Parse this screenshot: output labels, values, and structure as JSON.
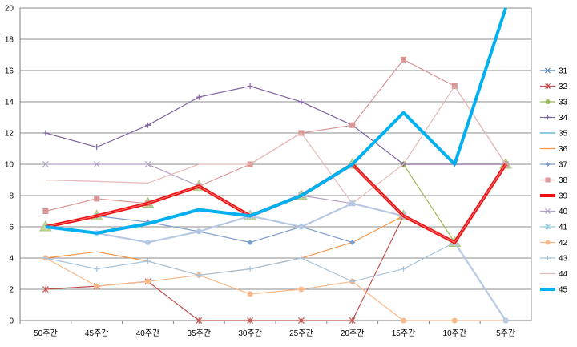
{
  "chart_data": {
    "type": "line",
    "categories": [
      "50주간",
      "45주간",
      "40주간",
      "35주간",
      "30주간",
      "25주간",
      "20주간",
      "15주간",
      "10주간",
      "5주간"
    ],
    "ylim": [
      0,
      20
    ],
    "yticks": [
      "0",
      "2",
      "4",
      "6",
      "8",
      "10",
      "12",
      "14",
      "16",
      "18",
      "20"
    ],
    "grid": true,
    "legend_position": "right",
    "series": [
      {
        "name": "31",
        "color": "#4f81bd",
        "marker": "x",
        "width": 1.2,
        "values": [
          null,
          null,
          null,
          null,
          null,
          null,
          null,
          null,
          null,
          null
        ]
      },
      {
        "name": "32",
        "color": "#c0504d",
        "marker": "star",
        "width": 1.2,
        "values": [
          2,
          2.2,
          2.5,
          0,
          0,
          0,
          0,
          6.7,
          5,
          10
        ]
      },
      {
        "name": "33",
        "color": "#9bbb59",
        "marker": "circle",
        "width": 1.2,
        "values": [
          null,
          null,
          null,
          null,
          null,
          null,
          null,
          10,
          5,
          null
        ]
      },
      {
        "name": "34",
        "color": "#8064a2",
        "marker": "plus",
        "width": 1.2,
        "values": [
          12,
          11.1,
          12.5,
          14.3,
          15,
          14,
          12.5,
          10,
          10,
          10
        ]
      },
      {
        "name": "35",
        "color": "#4bacc6",
        "marker": "none",
        "width": 1.2,
        "values": [
          null,
          null,
          null,
          null,
          null,
          null,
          null,
          null,
          null,
          null
        ]
      },
      {
        "name": "36",
        "color": "#f79646",
        "marker": "none",
        "width": 1.2,
        "values": [
          4,
          4.4,
          3.8,
          2.9,
          3.3,
          4,
          5,
          6.7,
          null,
          null
        ]
      },
      {
        "name": "37",
        "color": "#7f9fcf",
        "marker": "diamond",
        "width": 1.2,
        "values": [
          null,
          6.7,
          6.3,
          5.7,
          5,
          6,
          5,
          null,
          null,
          null
        ]
      },
      {
        "name": "38",
        "color": "#d99694",
        "marker": "square",
        "width": 1.2,
        "values": [
          7,
          7.8,
          7.5,
          8.6,
          10,
          12,
          12.5,
          16.7,
          15,
          10
        ]
      },
      {
        "name": "39",
        "color": "#ee1111",
        "marker": "none",
        "width": 4,
        "values": [
          6,
          6.7,
          7.5,
          8.6,
          6.7,
          8,
          10,
          6.7,
          5,
          10
        ]
      },
      {
        "name": "40",
        "color": "#b3a2c7",
        "marker": "x",
        "width": 1.2,
        "values": [
          10,
          10,
          10,
          8.6,
          6.7,
          8,
          7.5,
          6.7,
          5,
          10
        ]
      },
      {
        "name": "41",
        "color": "#93cddd",
        "marker": "star",
        "width": 1.2,
        "values": [
          null,
          null,
          null,
          null,
          null,
          null,
          null,
          null,
          null,
          null
        ]
      },
      {
        "name": "42",
        "color": "#fab98a",
        "marker": "circle",
        "width": 1.2,
        "values": [
          4,
          2.2,
          2.5,
          2.9,
          1.7,
          2,
          2.5,
          0,
          0,
          0
        ]
      },
      {
        "name": "43",
        "color": "#a6c4de",
        "marker": "plus",
        "width": 1.2,
        "values": [
          4,
          3.3,
          3.8,
          2.9,
          3.3,
          4,
          2.5,
          3.3,
          5,
          0
        ]
      },
      {
        "name": "44",
        "color": "#e6b9b8",
        "marker": "none",
        "width": 1.2,
        "values": [
          9,
          8.9,
          8.8,
          10,
          10,
          12,
          7.5,
          10,
          15,
          10
        ]
      },
      {
        "name": "45",
        "color": "#00b0f0",
        "marker": "none",
        "width": 4,
        "values": [
          6,
          5.6,
          6.2,
          7.1,
          6.7,
          8,
          10,
          13.3,
          10,
          20
        ]
      },
      {
        "name": "",
        "color": "#b7c9e2",
        "marker": "circle",
        "width": 2.2,
        "legend": false,
        "values": [
          null,
          5.6,
          5,
          5.7,
          6.7,
          6,
          7.5,
          6.7,
          5,
          0
        ]
      },
      {
        "name": "",
        "color": "#b2b2b2",
        "marker": "triangle",
        "width": 0,
        "legend": false,
        "values": [
          6,
          6.7,
          7.5,
          8.6,
          6.7,
          8,
          10,
          6.7,
          5,
          10
        ]
      }
    ]
  }
}
